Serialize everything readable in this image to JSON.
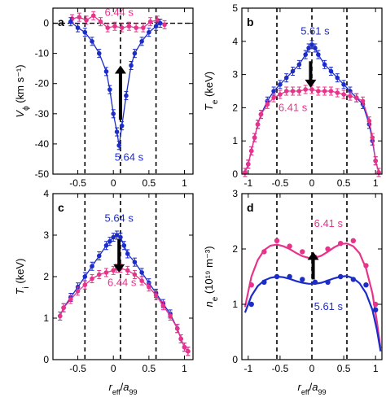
{
  "chart_data": [
    {
      "panel": "a",
      "type": "scatter",
      "xlabel": "r_eff/a_99",
      "ylabel_base": "V",
      "ylabel_sub": "ϕ",
      "ylabel_units": "(km s⁻¹)",
      "xlim": [
        -0.85,
        1.12
      ],
      "ylim": [
        -50,
        5
      ],
      "xticks": [
        "-0.5",
        "0",
        "0.5",
        "1"
      ],
      "xtick_values": [
        -0.5,
        0,
        0.5,
        1
      ],
      "yticks": [
        "0",
        "-10",
        "-20",
        "-30",
        "-40",
        "-50"
      ],
      "ytick_values": [
        0,
        -10,
        -20,
        -30,
        -40,
        -50
      ],
      "dashed_vlines": [
        -0.4,
        0.1,
        0.6
      ],
      "hline": 0,
      "arrow": {
        "x": 0.1,
        "y_from": -32,
        "y_to": -14
      },
      "series": [
        {
          "name": "6.44 s",
          "color": "#e8338a",
          "label_pos": [
            0.08,
            2.5
          ],
          "x": [
            -0.58,
            -0.48,
            -0.38,
            -0.28,
            -0.18,
            -0.08,
            0.02,
            0.12,
            0.22,
            0.32,
            0.42,
            0.52,
            0.62,
            0.72
          ],
          "y": [
            1.5,
            2.0,
            1.0,
            2.5,
            0.5,
            -1.5,
            -1.0,
            -1.5,
            -1.0,
            -1.5,
            -1.5,
            0.5,
            1.0,
            -0.5
          ]
        },
        {
          "name": "5.64 s",
          "color": "#1c2cc9",
          "label_pos": [
            0.22,
            -45.5
          ],
          "x": [
            -0.6,
            -0.5,
            -0.4,
            -0.3,
            -0.2,
            -0.1,
            -0.05,
            0.0,
            0.05,
            0.08,
            0.12,
            0.18,
            0.25,
            0.3,
            0.4,
            0.5,
            0.6,
            0.66
          ],
          "y": [
            0.5,
            -1.5,
            -3.0,
            -6.0,
            -10.0,
            -16.0,
            -22.0,
            -30.0,
            -36.0,
            -40.5,
            -34.0,
            -24.0,
            -14.0,
            -10.0,
            -6.0,
            -3.0,
            -1.0,
            0.0
          ]
        }
      ]
    },
    {
      "panel": "b",
      "type": "scatter",
      "xlabel": "r_eff/a_99",
      "ylabel_base": "T",
      "ylabel_sub": "e",
      "ylabel_units": "(keV)",
      "xlim": [
        -1.1,
        1.1
      ],
      "ylim": [
        0,
        5
      ],
      "xticks": [
        "-1",
        "-0.5",
        "0",
        "0.5",
        "1"
      ],
      "xtick_values": [
        -1,
        -0.5,
        0,
        0.5,
        1
      ],
      "yticks": [
        "0",
        "1",
        "2",
        "3",
        "4",
        "5"
      ],
      "ytick_values": [
        0,
        1,
        2,
        3,
        4,
        5
      ],
      "dashed_vlines": [
        -0.55,
        0.0,
        0.55
      ],
      "arrow": {
        "x": -0.02,
        "y_from": 3.4,
        "y_to": 2.6
      },
      "series": [
        {
          "name": "5.61 s",
          "color": "#1c2cc9",
          "label_pos": [
            0.05,
            4.2
          ],
          "x": [
            -1.05,
            -1.0,
            -0.95,
            -0.9,
            -0.85,
            -0.8,
            -0.7,
            -0.6,
            -0.5,
            -0.4,
            -0.3,
            -0.2,
            -0.1,
            -0.05,
            0.0,
            0.05,
            0.1,
            0.2,
            0.3,
            0.4,
            0.5,
            0.6,
            0.7,
            0.8,
            0.9,
            0.95,
            1.0,
            1.05
          ],
          "y": [
            0.05,
            0.3,
            0.7,
            1.1,
            1.5,
            1.8,
            2.2,
            2.5,
            2.7,
            2.9,
            3.1,
            3.3,
            3.6,
            3.8,
            3.9,
            3.8,
            3.6,
            3.3,
            3.1,
            2.9,
            2.7,
            2.5,
            2.3,
            2.1,
            1.5,
            1.0,
            0.4,
            0.05
          ]
        },
        {
          "name": "6.41 s",
          "color": "#e8338a",
          "label_pos": [
            -0.3,
            1.9
          ],
          "x": [
            -1.05,
            -1.0,
            -0.95,
            -0.9,
            -0.85,
            -0.8,
            -0.7,
            -0.6,
            -0.5,
            -0.4,
            -0.3,
            -0.2,
            -0.1,
            0.0,
            0.1,
            0.2,
            0.3,
            0.4,
            0.5,
            0.6,
            0.7,
            0.8,
            0.9,
            0.95,
            1.0,
            1.05
          ],
          "y": [
            0.05,
            0.3,
            0.7,
            1.1,
            1.5,
            1.8,
            2.1,
            2.3,
            2.4,
            2.5,
            2.5,
            2.5,
            2.55,
            2.55,
            2.5,
            2.5,
            2.5,
            2.45,
            2.4,
            2.35,
            2.3,
            2.2,
            1.6,
            1.1,
            0.4,
            0.05
          ]
        }
      ]
    },
    {
      "panel": "c",
      "type": "scatter",
      "xlabel": "r_eff/a_99",
      "ylabel_base": "T",
      "ylabel_sub": "i",
      "ylabel_units": "(keV)",
      "xlim": [
        -0.85,
        1.12
      ],
      "ylim": [
        0,
        4
      ],
      "xticks": [
        "-0.5",
        "0",
        "0.5",
        "1"
      ],
      "xtick_values": [
        -0.5,
        0,
        0.5,
        1
      ],
      "yticks": [
        "0",
        "1",
        "2",
        "3",
        "4"
      ],
      "ytick_values": [
        0,
        1,
        2,
        3,
        4
      ],
      "dashed_vlines": [
        -0.4,
        0.1,
        0.6
      ],
      "arrow": {
        "x": 0.08,
        "y_from": 2.9,
        "y_to": 2.1
      },
      "series": [
        {
          "name": "5.64 s",
          "color": "#1c2cc9",
          "label_pos": [
            0.08,
            3.32
          ],
          "x": [
            -0.75,
            -0.7,
            -0.6,
            -0.5,
            -0.4,
            -0.3,
            -0.2,
            -0.1,
            -0.05,
            0.0,
            0.05,
            0.1,
            0.15,
            0.2,
            0.3,
            0.4,
            0.5,
            0.6,
            0.7,
            0.8,
            0.9,
            0.95,
            1.0,
            1.05
          ],
          "y": [
            1.05,
            1.25,
            1.5,
            1.75,
            2.0,
            2.25,
            2.5,
            2.75,
            2.85,
            2.95,
            3.0,
            2.95,
            2.75,
            2.55,
            2.35,
            2.1,
            1.85,
            1.6,
            1.35,
            1.1,
            0.75,
            0.5,
            0.3,
            0.2
          ]
        },
        {
          "name": "6.44 s",
          "color": "#e8338a",
          "label_pos": [
            0.12,
            1.77
          ],
          "x": [
            -0.75,
            -0.7,
            -0.6,
            -0.5,
            -0.4,
            -0.3,
            -0.2,
            -0.1,
            0.0,
            0.05,
            0.1,
            0.2,
            0.3,
            0.4,
            0.5,
            0.6,
            0.7,
            0.8,
            0.9,
            0.95,
            1.0,
            1.05
          ],
          "y": [
            1.05,
            1.25,
            1.45,
            1.65,
            1.8,
            1.95,
            2.05,
            2.1,
            2.15,
            2.2,
            2.2,
            2.15,
            2.05,
            1.9,
            1.75,
            1.55,
            1.3,
            1.05,
            0.75,
            0.5,
            0.3,
            0.2
          ]
        }
      ]
    },
    {
      "panel": "d",
      "type": "scatter",
      "xlabel": "r_eff/a_99",
      "ylabel_base": "n",
      "ylabel_sub": "e",
      "ylabel_units": "(10¹⁹ m⁻³)",
      "xlim": [
        -1.1,
        1.1
      ],
      "ylim": [
        0,
        3
      ],
      "xticks": [
        "-1",
        "-0.5",
        "0",
        "0.5",
        "1"
      ],
      "xtick_values": [
        -1,
        -0.5,
        0,
        0.5,
        1
      ],
      "yticks": [
        "0",
        "1",
        "2",
        "3"
      ],
      "ytick_values": [
        0,
        1,
        2,
        3
      ],
      "dashed_vlines": [
        -0.55,
        0.0,
        0.55
      ],
      "arrow": {
        "x": 0.02,
        "y_from": 1.45,
        "y_to": 1.95
      },
      "series": [
        {
          "name": "6.41 s",
          "color": "#e8338a",
          "label_pos": [
            0.26,
            2.4
          ],
          "x": [
            -0.95,
            -0.75,
            -0.55,
            -0.35,
            -0.15,
            0.05,
            0.25,
            0.45,
            0.65,
            0.85,
            1.0
          ],
          "y": [
            1.35,
            1.95,
            2.15,
            2.05,
            1.95,
            1.85,
            2.0,
            2.1,
            2.15,
            1.7,
            1.0
          ],
          "fit_x": [
            -1.05,
            -0.95,
            -0.85,
            -0.75,
            -0.65,
            -0.55,
            -0.45,
            -0.35,
            -0.25,
            -0.15,
            -0.05,
            0.0,
            0.05,
            0.15,
            0.25,
            0.35,
            0.45,
            0.55,
            0.65,
            0.75,
            0.85,
            0.95,
            1.02,
            1.08
          ],
          "fit_y": [
            0.95,
            1.5,
            1.8,
            1.98,
            2.06,
            2.08,
            2.05,
            2.0,
            1.93,
            1.87,
            1.84,
            1.83,
            1.84,
            1.88,
            1.95,
            2.03,
            2.09,
            2.1,
            2.05,
            1.92,
            1.65,
            1.2,
            0.7,
            0.2
          ]
        },
        {
          "name": "5.61 s",
          "color": "#1c2cc9",
          "label_pos": [
            0.26,
            0.9
          ],
          "x": [
            -0.95,
            -0.75,
            -0.55,
            -0.35,
            -0.15,
            0.05,
            0.25,
            0.45,
            0.65,
            0.85,
            1.0
          ],
          "y": [
            1.0,
            1.4,
            1.5,
            1.5,
            1.45,
            1.4,
            1.4,
            1.5,
            1.45,
            1.35,
            0.9
          ],
          "fit_x": [
            -1.05,
            -0.95,
            -0.85,
            -0.75,
            -0.65,
            -0.55,
            -0.45,
            -0.35,
            -0.25,
            -0.15,
            -0.05,
            0.0,
            0.05,
            0.15,
            0.25,
            0.35,
            0.45,
            0.55,
            0.65,
            0.75,
            0.85,
            0.95,
            1.02,
            1.08
          ],
          "fit_y": [
            0.85,
            1.15,
            1.33,
            1.43,
            1.48,
            1.5,
            1.49,
            1.46,
            1.42,
            1.39,
            1.37,
            1.37,
            1.37,
            1.39,
            1.43,
            1.47,
            1.5,
            1.51,
            1.47,
            1.38,
            1.2,
            0.9,
            0.55,
            0.15
          ]
        }
      ]
    }
  ]
}
